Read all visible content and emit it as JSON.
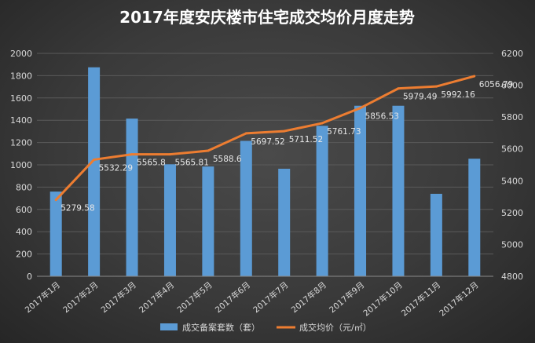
{
  "chart_data": {
    "type": "bar",
    "title": "2017年度安庆楼市住宅成交均价月度走势",
    "categories": [
      "2017年1月",
      "2017年2月",
      "2017年3月",
      "2017年4月",
      "2017年5月",
      "2017年6月",
      "2017年7月",
      "2017年8月",
      "2017年9月",
      "2017年10月",
      "2017年11月",
      "2017年12月"
    ],
    "series": [
      {
        "name": "成交备案套数（套）",
        "type": "bar",
        "axis": "left",
        "color": "#5b9bd5",
        "values": [
          760,
          1875,
          1415,
          1005,
          985,
          1215,
          965,
          1350,
          1530,
          1530,
          740,
          1055
        ]
      },
      {
        "name": "成交均价（元/㎡）",
        "type": "line",
        "axis": "right",
        "color": "#ed7d31",
        "values": [
          5279.58,
          5532.29,
          5565.8,
          5565.81,
          5588.6,
          5697.52,
          5711.52,
          5761.73,
          5856.53,
          5979.49,
          5992.16,
          6056.79
        ],
        "labels": [
          "5279.58",
          "5532.29",
          "5565.8",
          "5565.81",
          "5588.6",
          "5697.52",
          "5711.52",
          "5761.73",
          "5856.53",
          "5979.49",
          "5992.16",
          "6056.79"
        ]
      }
    ],
    "left_axis": {
      "min": 0,
      "max": 2000,
      "ticks": [
        "0",
        "200",
        "400",
        "600",
        "800",
        "1000",
        "1200",
        "1400",
        "1600",
        "1800",
        "2000"
      ]
    },
    "right_axis": {
      "min": 4800,
      "max": 6200,
      "ticks": [
        "4800",
        "5000",
        "5200",
        "5400",
        "5600",
        "5800",
        "6000",
        "6200"
      ]
    },
    "legend_position": "bottom",
    "grid": true
  }
}
